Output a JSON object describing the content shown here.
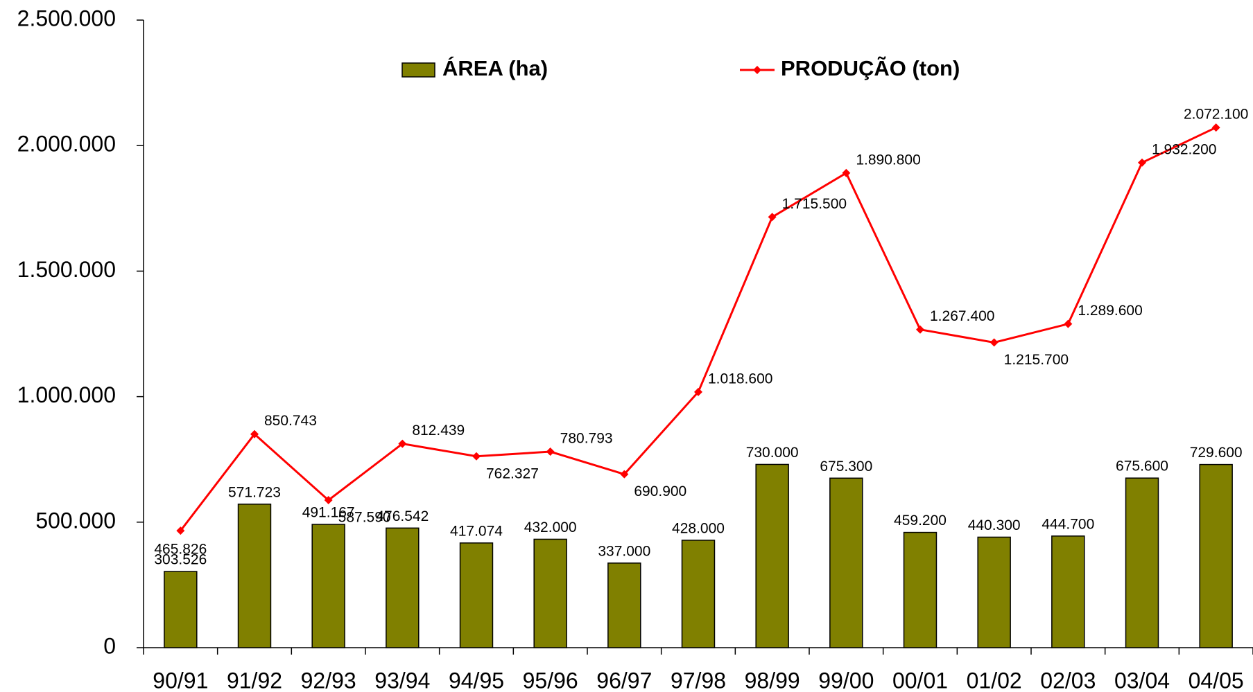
{
  "chart_data": {
    "type": "bar-line",
    "categories": [
      "90/91",
      "91/92",
      "92/93",
      "93/94",
      "94/95",
      "95/96",
      "96/97",
      "97/98",
      "98/99",
      "99/00",
      "00/01",
      "01/02",
      "02/03",
      "03/04",
      "04/05"
    ],
    "series": [
      {
        "name": "ÁREA  (ha)",
        "type": "bar",
        "color": "#808000",
        "values": [
          303526,
          571723,
          491167,
          476542,
          417074,
          432000,
          337000,
          428000,
          730000,
          675300,
          459200,
          440300,
          444700,
          675600,
          729600
        ],
        "value_labels": [
          "303.526",
          "571.723",
          "491.167",
          "476.542",
          "417.074",
          "432.000",
          "337.000",
          "428.000",
          "730.000",
          "675.300",
          "459.200",
          "440.300",
          "444.700",
          "675.600",
          "729.600"
        ]
      },
      {
        "name": "PRODUÇÃO  (ton)",
        "type": "line",
        "color": "#ff0000",
        "values": [
          465826,
          850743,
          587590,
          812439,
          762327,
          780793,
          690900,
          1018600,
          1715500,
          1890800,
          1267400,
          1215700,
          1289600,
          1932200,
          2072100
        ],
        "value_labels": [
          "465.826",
          "850.743",
          "587.590",
          "812.439",
          "762.327",
          "780.793",
          "690.900",
          "1.018.600",
          "1.715.500",
          "1.890.800",
          "1.267.400",
          "1.215.700",
          "1.289.600",
          "1.932.200",
          "2.072.100"
        ]
      }
    ],
    "ylim": [
      0,
      2500000
    ],
    "yticks": [
      {
        "value": 0,
        "label": "0"
      },
      {
        "value": 500000,
        "label": "500.000"
      },
      {
        "value": 1000000,
        "label": "1.000.000"
      },
      {
        "value": 1500000,
        "label": "1.500.000"
      },
      {
        "value": 2000000,
        "label": "2.000.000"
      },
      {
        "value": 2500000,
        "label": "2.500.000"
      }
    ],
    "legend": "top"
  }
}
